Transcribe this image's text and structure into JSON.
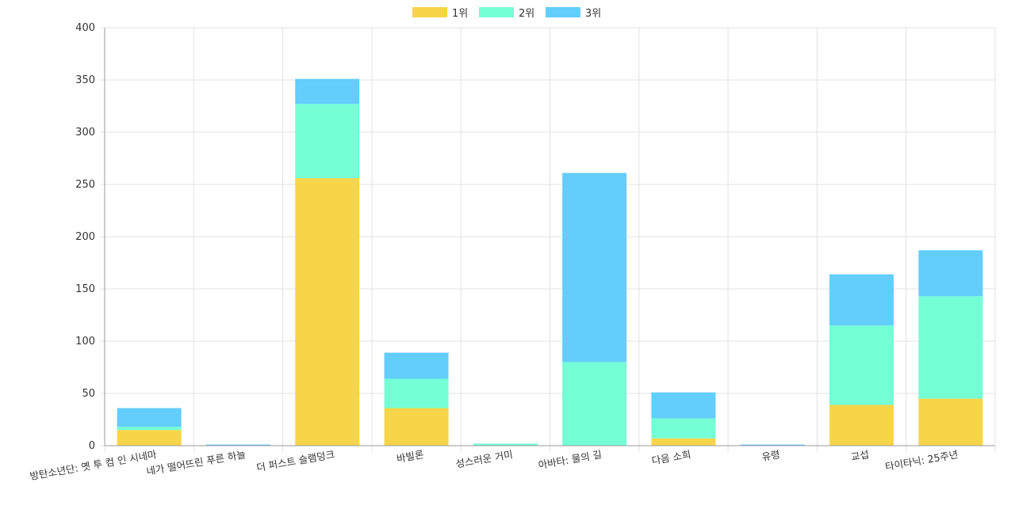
{
  "chart_data": {
    "type": "bar",
    "stacked": true,
    "categories": [
      "방탄소년단: 옛 투 컴 인 시네마",
      "네가 떨어뜨린 푸른 하늘",
      "더 퍼스트 슬램덩크",
      "바빌론",
      "성스러운 거미",
      "아바타: 물의 길",
      "다음 소희",
      "유령",
      "교섭",
      "타이타닉: 25주년"
    ],
    "series": [
      {
        "name": "1위",
        "color": "#f7d548",
        "values": [
          15,
          0,
          256,
          36,
          0,
          0,
          7,
          0,
          39,
          45
        ]
      },
      {
        "name": "2위",
        "color": "#74ffd5",
        "values": [
          3,
          0,
          71,
          28,
          2,
          80,
          19,
          0,
          76,
          98
        ]
      },
      {
        "name": "3위",
        "color": "#63cdfc",
        "values": [
          18,
          1,
          24,
          25,
          0,
          181,
          25,
          1,
          49,
          44
        ]
      }
    ],
    "ylim": [
      0,
      400
    ],
    "yticks": [
      0,
      50,
      100,
      150,
      200,
      250,
      300,
      350,
      400
    ],
    "grid": true,
    "legend_position": "top-center",
    "xlabel": "",
    "ylabel": "",
    "title": ""
  }
}
